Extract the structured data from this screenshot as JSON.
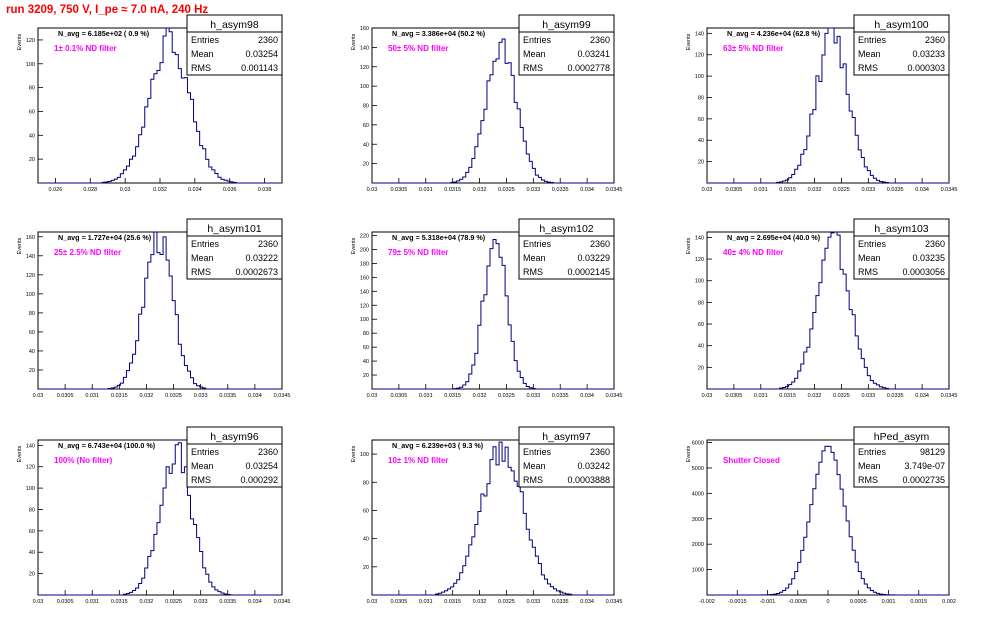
{
  "page_title": "run 3209,   750 V, I_pe ≈ 7.0 nA, 240 Hz",
  "colors": {
    "title": "#ff0000",
    "label": "#ff00ff",
    "hist": "#000080",
    "axis": "#000000"
  },
  "chart_data": [
    {
      "type": "histogram",
      "hist_name": "h_asym98",
      "ylabel": "Events",
      "xlabel": "",
      "navg": "N_avg = 6.185e+02 ( 0.9 %)",
      "label": "1± 0.1% ND filter",
      "stats": {
        "entries": "2360",
        "mean": "0.03254",
        "rms": "0.001143"
      },
      "xlim": [
        0.025,
        0.039
      ],
      "ylim": [
        0,
        130
      ],
      "xticks": [
        "0.026",
        "0.028",
        "0.03",
        "0.032",
        "0.034",
        "0.036",
        "0.038"
      ],
      "xtick_values": [
        0.026,
        0.028,
        0.03,
        0.032,
        0.034,
        0.036,
        0.038
      ],
      "yticks": [
        "20",
        "40",
        "60",
        "80",
        "100",
        "120"
      ],
      "ytick_values": [
        20,
        40,
        60,
        80,
        100,
        120
      ],
      "mean": 0.03254,
      "rms": 0.001143,
      "peak": 122,
      "entries": 2360,
      "seed": 3
    },
    {
      "type": "histogram",
      "hist_name": "h_asym99",
      "ylabel": "Events",
      "xlabel": "",
      "navg": "N_avg = 3.386e+04 (50.2 %)",
      "label": "50± 5% ND filter",
      "stats": {
        "entries": "2360",
        "mean": "0.03241",
        "rms": "0.0002778"
      },
      "xlim": [
        0.03,
        0.0345
      ],
      "ylim": [
        0,
        160
      ],
      "xticks": [
        "0.03",
        "0.0305",
        "0.031",
        "0.0315",
        "0.032",
        "0.0325",
        "0.033",
        "0.0335",
        "0.034",
        "0.0345"
      ],
      "xtick_values": [
        0.03,
        0.0305,
        0.031,
        0.0315,
        0.032,
        0.0325,
        0.033,
        0.0335,
        0.034,
        0.0345
      ],
      "yticks": [
        "20",
        "40",
        "60",
        "80",
        "100",
        "120",
        "140",
        "160"
      ],
      "ytick_values": [
        20,
        40,
        60,
        80,
        100,
        120,
        140,
        160
      ],
      "mean": 0.03241,
      "rms": 0.0002778,
      "peak": 142,
      "entries": 2360,
      "seed": 7
    },
    {
      "type": "histogram",
      "hist_name": "h_asym100",
      "ylabel": "Events",
      "xlabel": "",
      "navg": "N_avg = 4.236e+04 (62.8 %)",
      "label": "63± 5% ND filter",
      "stats": {
        "entries": "2360",
        "mean": "0.03233",
        "rms": "0.000303"
      },
      "xlim": [
        0.03,
        0.0345
      ],
      "ylim": [
        0,
        145
      ],
      "xticks": [
        "0.03",
        "0.0305",
        "0.031",
        "0.0315",
        "0.032",
        "0.0325",
        "0.033",
        "0.0335",
        "0.034",
        "0.0345"
      ],
      "xtick_values": [
        0.03,
        0.0305,
        0.031,
        0.0315,
        0.032,
        0.0325,
        0.033,
        0.0335,
        0.034,
        0.0345
      ],
      "yticks": [
        "20",
        "40",
        "60",
        "80",
        "100",
        "120",
        "140"
      ],
      "ytick_values": [
        20,
        40,
        60,
        80,
        100,
        120,
        140
      ],
      "mean": 0.03233,
      "rms": 0.000303,
      "peak": 138,
      "entries": 2360,
      "seed": 11
    },
    {
      "type": "histogram",
      "hist_name": "h_asym101",
      "ylabel": "Events",
      "xlabel": "",
      "navg": "N_avg = 1.727e+04 (25.6 %)",
      "label": "25± 2.5% ND filter",
      "stats": {
        "entries": "2360",
        "mean": "0.03222",
        "rms": "0.0002673"
      },
      "xlim": [
        0.03,
        0.0345
      ],
      "ylim": [
        0,
        165
      ],
      "xticks": [
        "0.03",
        "0.0305",
        "0.031",
        "0.0315",
        "0.032",
        "0.0325",
        "0.033",
        "0.0335",
        "0.034",
        "0.0345"
      ],
      "xtick_values": [
        0.03,
        0.0305,
        0.031,
        0.0315,
        0.032,
        0.0325,
        0.033,
        0.0335,
        0.034,
        0.0345
      ],
      "yticks": [
        "20",
        "40",
        "60",
        "80",
        "100",
        "120",
        "140",
        "160"
      ],
      "ytick_values": [
        20,
        40,
        60,
        80,
        100,
        120,
        140,
        160
      ],
      "mean": 0.03222,
      "rms": 0.0002673,
      "peak": 158,
      "entries": 2360,
      "seed": 13
    },
    {
      "type": "histogram",
      "hist_name": "h_asym102",
      "ylabel": "Events",
      "xlabel": "",
      "navg": "N_avg = 5.318e+04 (78.9 %)",
      "label": "79± 5% ND filter",
      "stats": {
        "entries": "2360",
        "mean": "0.03229",
        "rms": "0.0002145"
      },
      "xlim": [
        0.03,
        0.0345
      ],
      "ylim": [
        0,
        225
      ],
      "xticks": [
        "0.03",
        "0.0305",
        "0.031",
        "0.0315",
        "0.032",
        "0.0325",
        "0.033",
        "0.0335",
        "0.034",
        "0.0345"
      ],
      "xtick_values": [
        0.03,
        0.0305,
        0.031,
        0.0315,
        0.032,
        0.0325,
        0.033,
        0.0335,
        0.034,
        0.0345
      ],
      "yticks": [
        "20",
        "40",
        "60",
        "80",
        "100",
        "120",
        "140",
        "160",
        "180",
        "200",
        "220"
      ],
      "ytick_values": [
        20,
        40,
        60,
        80,
        100,
        120,
        140,
        160,
        180,
        200,
        220
      ],
      "mean": 0.03229,
      "rms": 0.0002145,
      "peak": 212,
      "entries": 2360,
      "seed": 17
    },
    {
      "type": "histogram",
      "hist_name": "h_asym103",
      "ylabel": "Events",
      "xlabel": "",
      "navg": "N_avg = 2.695e+04 (40.0 %)",
      "label": "40± 4% ND filter",
      "stats": {
        "entries": "2360",
        "mean": "0.03235",
        "rms": "0.0003056"
      },
      "xlim": [
        0.03,
        0.0345
      ],
      "ylim": [
        0,
        145
      ],
      "xticks": [
        "0.03",
        "0.0305",
        "0.031",
        "0.0315",
        "0.032",
        "0.0325",
        "0.033",
        "0.0335",
        "0.034",
        "0.0345"
      ],
      "xtick_values": [
        0.03,
        0.0305,
        0.031,
        0.0315,
        0.032,
        0.0325,
        0.033,
        0.0335,
        0.034,
        0.0345
      ],
      "yticks": [
        "20",
        "40",
        "60",
        "80",
        "100",
        "120",
        "140"
      ],
      "ytick_values": [
        20,
        40,
        60,
        80,
        100,
        120,
        140
      ],
      "mean": 0.03235,
      "rms": 0.0003056,
      "peak": 136,
      "entries": 2360,
      "seed": 19
    },
    {
      "type": "histogram",
      "hist_name": "h_asym96",
      "ylabel": "Events",
      "xlabel": "",
      "navg": "N_avg = 6.743e+04 (100.0 %)",
      "label": "100% (No filter)",
      "stats": {
        "entries": "2360",
        "mean": "0.03254",
        "rms": "0.000292"
      },
      "xlim": [
        0.03,
        0.0345
      ],
      "ylim": [
        0,
        145
      ],
      "xticks": [
        "0.03",
        "0.0305",
        "0.031",
        "0.0315",
        "0.032",
        "0.0325",
        "0.033",
        "0.0335",
        "0.034",
        "0.0345"
      ],
      "xtick_values": [
        0.03,
        0.0305,
        0.031,
        0.0315,
        0.032,
        0.0325,
        0.033,
        0.0335,
        0.034,
        0.0345
      ],
      "yticks": [
        "20",
        "40",
        "60",
        "80",
        "100",
        "120",
        "140"
      ],
      "ytick_values": [
        20,
        40,
        60,
        80,
        100,
        120,
        140
      ],
      "mean": 0.03254,
      "rms": 0.000292,
      "peak": 134,
      "entries": 2360,
      "seed": 23
    },
    {
      "type": "histogram",
      "hist_name": "h_asym97",
      "ylabel": "Events",
      "xlabel": "",
      "navg": "N_avg = 6.239e+03 ( 9.3 %)",
      "label": "10± 1% ND filter",
      "stats": {
        "entries": "2360",
        "mean": "0.03242",
        "rms": "0.0003888"
      },
      "xlim": [
        0.03,
        0.0345
      ],
      "ylim": [
        0,
        110
      ],
      "xticks": [
        "0.03",
        "0.0305",
        "0.031",
        "0.0315",
        "0.032",
        "0.0325",
        "0.033",
        "0.0335",
        "0.034",
        "0.0345"
      ],
      "xtick_values": [
        0.03,
        0.0305,
        0.031,
        0.0315,
        0.032,
        0.0325,
        0.033,
        0.0335,
        0.034,
        0.0345
      ],
      "yticks": [
        "20",
        "40",
        "60",
        "80",
        "100"
      ],
      "ytick_values": [
        20,
        40,
        60,
        80,
        100
      ],
      "mean": 0.03242,
      "rms": 0.0003888,
      "peak": 104,
      "entries": 2360,
      "seed": 29
    },
    {
      "type": "histogram",
      "hist_name": "hPed_asym",
      "ylabel": "Events",
      "xlabel": "",
      "navg": "",
      "label": "Shutter Closed",
      "stats": {
        "entries": "98129",
        "mean": "3.749e-07",
        "rms": "0.0002735"
      },
      "xlim": [
        -0.002,
        0.002
      ],
      "ylim": [
        0,
        6100
      ],
      "xticks": [
        "-0.002",
        "-0.0015",
        "-0.001",
        "-0.0005",
        "0",
        "0.0005",
        "0.001",
        "0.0015",
        "0.002"
      ],
      "xtick_values": [
        -0.002,
        -0.0015,
        -0.001,
        -0.0005,
        0,
        0.0005,
        0.001,
        0.0015,
        0.002
      ],
      "yticks": [
        "1000",
        "2000",
        "3000",
        "4000",
        "5000",
        "6000"
      ],
      "ytick_values": [
        1000,
        2000,
        3000,
        4000,
        5000,
        6000
      ],
      "mean": 3.749e-07,
      "rms": 0.0002735,
      "peak": 5850,
      "entries": 98129,
      "seed": 0
    }
  ]
}
